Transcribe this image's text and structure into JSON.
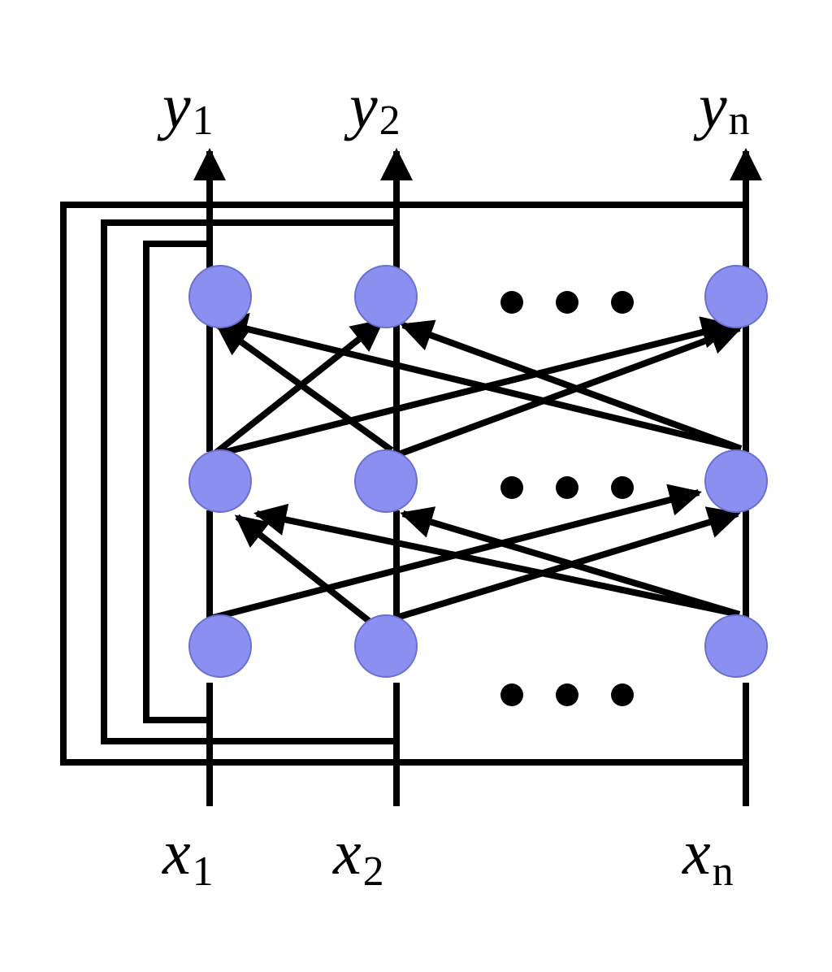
{
  "outputs": [
    {
      "var": "y",
      "sub": "1"
    },
    {
      "var": "y",
      "sub": "2"
    },
    {
      "var": "y",
      "sub": "n"
    }
  ],
  "inputs": [
    {
      "var": "x",
      "sub": "1"
    },
    {
      "var": "x",
      "sub": "2"
    },
    {
      "var": "x",
      "sub": "n"
    }
  ],
  "colors": {
    "node_fill": "#8b90f0",
    "node_stroke": "#6a6fd0",
    "line": "#000000",
    "background": "#ffffff"
  },
  "node_icon": "circle-node-icon",
  "ellipsis_icon": "ellipsis-dots-icon"
}
